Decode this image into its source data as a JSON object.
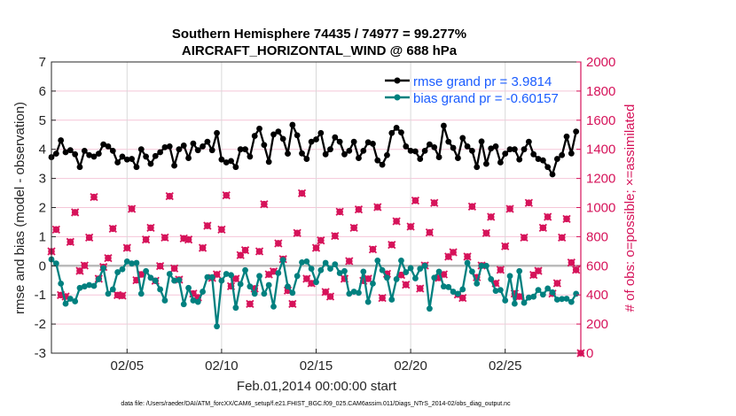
{
  "chart_data": {
    "type": "line",
    "title": "Southern Hemisphere 74435 / 74977 = 99.277%",
    "subtitle": "AIRCRAFT_HORIZONTAL_WIND @ 688 hPa",
    "xlabel": "Feb.01,2014 00:00:00 start",
    "ylabel": "rmse and bias (model - observation)",
    "y2label": "# of obs: o=possible; ×=assimilated",
    "footnote": "data file: /Users/raeder/DAI/ATM_forcXX/CAM6_setup/f.e21.FHIST_BGC.f09_025.CAM6assim.011/Diags_NTrS_2014-02/obs_diag_output.nc",
    "x_start": "2014-02-01 00:00",
    "x_step_hours": 6,
    "xlim": [
      "2014-02-01",
      "2014-03-01"
    ],
    "xticks": [
      "02/05",
      "02/10",
      "02/15",
      "02/20",
      "02/25"
    ],
    "xtick_dates": [
      "2014-02-05",
      "2014-02-10",
      "2014-02-15",
      "2014-02-20",
      "2014-02-25"
    ],
    "ylim": [
      -3,
      7
    ],
    "yticks": [
      "-3",
      "-2",
      "-1",
      "0",
      "1",
      "2",
      "3",
      "4",
      "5",
      "6",
      "7"
    ],
    "y2lim": [
      0,
      2000
    ],
    "y2ticks": [
      "0",
      "200",
      "400",
      "600",
      "800",
      "1000",
      "1200",
      "1400",
      "1600",
      "1800",
      "2000"
    ],
    "grid": true,
    "legend_placement": "top-right",
    "colors": {
      "rmse": "#000000",
      "bias": "#00807f",
      "obs": "#d6135a",
      "legend_text": "#1a5cff",
      "zero_line": "#bbbbbb",
      "hgrid": "#f5c6d8",
      "vgrid": "#d9d9d9"
    },
    "series": [
      {
        "name": "rmse grand pr = 3.9814",
        "axis": "left",
        "values": [
          3.73,
          3.85,
          4.31,
          3.9,
          3.97,
          3.83,
          3.39,
          3.95,
          3.8,
          3.75,
          3.85,
          4.17,
          4.1,
          3.95,
          3.55,
          3.75,
          3.65,
          3.67,
          3.39,
          4.0,
          3.75,
          3.5,
          3.77,
          3.9,
          4.07,
          4.1,
          3.44,
          4.0,
          4.13,
          3.7,
          4.2,
          3.97,
          4.1,
          4.26,
          3.97,
          4.56,
          3.65,
          3.55,
          3.6,
          3.39,
          4.0,
          4.0,
          3.75,
          4.46,
          4.71,
          4.15,
          3.57,
          4.51,
          4.61,
          4.36,
          3.85,
          4.84,
          4.48,
          3.86,
          3.67,
          4.26,
          4.34,
          4.56,
          3.83,
          4.0,
          4.41,
          4.26,
          3.83,
          3.95,
          4.26,
          3.7,
          3.95,
          4.24,
          4.19,
          3.62,
          3.47,
          3.8,
          4.56,
          4.74,
          4.58,
          4.1,
          3.95,
          3.93,
          3.67,
          3.95,
          4.17,
          4.07,
          3.73,
          4.81,
          4.26,
          4.05,
          3.7,
          4.39,
          4.1,
          3.95,
          3.39,
          4.27,
          3.5,
          4.03,
          4.1,
          3.55,
          3.85,
          4.0,
          4.0,
          3.65,
          4.0,
          4.26,
          3.83,
          3.67,
          3.62,
          3.39,
          3.14,
          3.67,
          3.8,
          4.44,
          3.86,
          4.61
        ]
      },
      {
        "name": "bias grand pr = -0.60157",
        "axis": "left",
        "values": [
          0.22,
          0.08,
          -0.61,
          -1.3,
          -1.13,
          -1.22,
          -0.76,
          -0.71,
          -0.66,
          -0.69,
          -0.46,
          -0.08,
          -0.96,
          -0.81,
          -0.22,
          -0.12,
          0.15,
          0.08,
          0.1,
          -0.96,
          -0.18,
          -0.41,
          -0.51,
          -0.81,
          -1.19,
          -0.28,
          -0.51,
          -0.49,
          -1.32,
          -0.76,
          -1.19,
          -1.24,
          -0.89,
          -0.39,
          -0.39,
          -2.08,
          -0.51,
          -0.28,
          -0.32,
          -1.44,
          -0.63,
          -0.15,
          -0.71,
          -0.96,
          -0.35,
          -0.96,
          -0.66,
          -1.4,
          -0.25,
          0.2,
          -0.71,
          -0.93,
          -0.35,
          0.12,
          0.15,
          -0.1,
          -0.56,
          -0.15,
          0.1,
          -0.1,
          0.05,
          -0.25,
          -0.18,
          -0.96,
          -0.89,
          -0.93,
          -0.2,
          -1.24,
          -0.61,
          0.18,
          -0.15,
          -0.41,
          -1.16,
          -0.46,
          0.18,
          -0.22,
          -0.08,
          -0.43,
          -0.1,
          0.0,
          -1.47,
          -0.41,
          -0.2,
          -0.71,
          -0.73,
          -0.89,
          -0.96,
          -0.81,
          0.1,
          -0.2,
          -0.61,
          0.0,
          0.0,
          -0.46,
          -0.86,
          -0.83,
          -1.19,
          -0.35,
          -1.3,
          -0.18,
          -1.27,
          -1.09,
          -1.06,
          -0.83,
          -0.99,
          -0.78,
          -0.91,
          -1.16,
          -1.14,
          -1.13,
          -1.24,
          -0.96
        ]
      },
      {
        "name": "possible",
        "axis": "right",
        "marker": "o",
        "values": [
          699,
          849,
          399,
          389,
          764,
          967,
          565,
          602,
          794,
          1072,
          511,
          592,
          653,
          855,
          399,
          395,
          723,
          991,
          501,
          541,
          780,
          861,
          497,
          598,
          794,
          1078,
          582,
          505,
          788,
          780,
          409,
          383,
          723,
          875,
          517,
          541,
          849,
          1084,
          460,
          511,
          673,
          707,
          338,
          444,
          699,
          1023,
          541,
          561,
          754,
          646,
          430,
          338,
          825,
          1098,
          511,
          480,
          723,
          774,
          420,
          389,
          805,
          971,
          511,
          632,
          861,
          987,
          497,
          511,
          713,
          1003,
          379,
          545,
          744,
          906,
          537,
          470,
          869,
          1048,
          444,
          602,
          829,
          1032,
          517,
          541,
          663,
          693,
          403,
          379,
          663,
          1007,
          521,
          602,
          825,
          936,
          480,
          572,
          734,
          991,
          409,
          389,
          794,
          1032,
          537,
          565,
          861,
          936,
          409,
          480,
          794,
          922,
          622,
          572,
          0
        ]
      },
      {
        "name": "assimilated",
        "axis": "right",
        "marker": "×",
        "values": [
          699,
          849,
          399,
          389,
          764,
          967,
          565,
          602,
          794,
          1072,
          511,
          592,
          653,
          855,
          399,
          395,
          723,
          991,
          501,
          541,
          780,
          861,
          497,
          598,
          794,
          1078,
          582,
          505,
          788,
          780,
          409,
          383,
          723,
          875,
          517,
          541,
          849,
          1084,
          460,
          511,
          673,
          707,
          338,
          444,
          699,
          1023,
          541,
          561,
          754,
          646,
          430,
          338,
          825,
          1098,
          511,
          480,
          723,
          774,
          420,
          389,
          805,
          971,
          511,
          632,
          861,
          987,
          497,
          511,
          713,
          1003,
          379,
          545,
          744,
          906,
          537,
          470,
          869,
          1048,
          444,
          602,
          829,
          1032,
          517,
          541,
          663,
          693,
          403,
          379,
          663,
          1007,
          521,
          602,
          825,
          936,
          480,
          572,
          734,
          991,
          409,
          389,
          794,
          1032,
          537,
          565,
          861,
          936,
          409,
          480,
          794,
          922,
          622,
          572,
          0
        ]
      }
    ]
  }
}
